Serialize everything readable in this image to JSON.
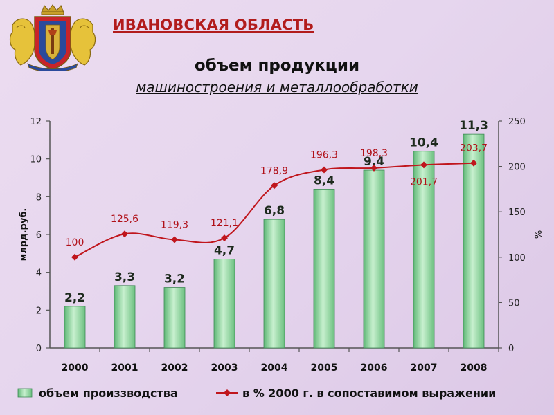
{
  "header": {
    "title": "ИВАНОВСКАЯ ОБЛАСТЬ"
  },
  "chart_data": {
    "type": "bar",
    "title": "объем продукции",
    "subtitle": "машиностроения и металлообработки",
    "ylabel": "млрд.руб.",
    "y2label": "%",
    "categories": [
      "2000",
      "2001",
      "2002",
      "2003",
      "2004",
      "2005",
      "2006",
      "2007",
      "2008"
    ],
    "series": [
      {
        "name": "объем произзводства",
        "kind": "bar",
        "axis": "left",
        "color": "#8fd69f",
        "values": [
          2.2,
          3.3,
          3.2,
          4.7,
          6.8,
          8.4,
          9.4,
          10.4,
          11.3
        ],
        "labels": [
          "2,2",
          "3,3",
          "3,2",
          "4,7",
          "6,8",
          "8,4",
          "9,4",
          "10,4",
          "11,3"
        ]
      },
      {
        "name": "в % 2000 г. в сопоставимом выражении",
        "kind": "line",
        "axis": "right",
        "color": "#c0161d",
        "values": [
          100,
          125.6,
          119.3,
          121.1,
          178.9,
          196.3,
          198.3,
          201.7,
          203.7
        ],
        "labels": [
          "100",
          "125,6",
          "119,3",
          "121,1",
          "178,9",
          "196,3",
          "198,3",
          "201,7",
          "203,7"
        ]
      }
    ],
    "ylim": [
      0,
      12
    ],
    "yticks": [
      "0",
      "2",
      "4",
      "6",
      "8",
      "10",
      "12"
    ],
    "y2lim": [
      0,
      250
    ],
    "y2ticks": [
      "0",
      "50",
      "100",
      "150",
      "200",
      "250"
    ],
    "grid": false,
    "legend_position": "bottom"
  }
}
